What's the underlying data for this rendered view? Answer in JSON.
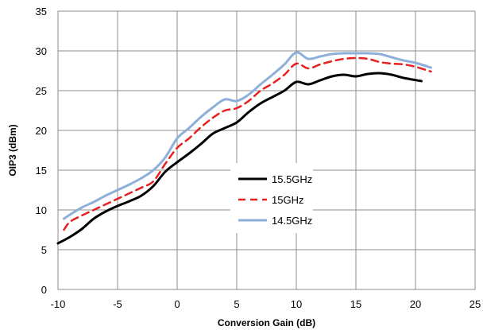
{
  "chart_data": {
    "type": "line",
    "title": "",
    "xlabel": "Conversion Gain (dB)",
    "ylabel": "OIP3 (dBm)",
    "xlim": [
      -10,
      25
    ],
    "ylim": [
      0,
      35
    ],
    "xticks": [
      -10,
      -5,
      0,
      5,
      10,
      15,
      20,
      25
    ],
    "yticks": [
      0,
      5,
      10,
      15,
      20,
      25,
      30,
      35
    ],
    "xtick_labels": [
      "-10",
      "-5",
      "0",
      "5",
      "10",
      "15",
      "20",
      "25"
    ],
    "ytick_labels": [
      "0",
      "5",
      "10",
      "15",
      "20",
      "25",
      "30",
      "35"
    ],
    "grid": true,
    "legend_position": "center",
    "series": [
      {
        "name": "15.5GHz",
        "color": "#000000",
        "dash": "solid",
        "x": [
          -10,
          -9,
          -8,
          -7,
          -6,
          -5,
          -4,
          -3,
          -2,
          -1,
          0,
          1,
          2,
          3,
          4,
          5,
          6,
          7,
          8,
          9,
          10,
          11,
          12,
          13,
          14,
          15,
          16,
          17,
          18,
          19,
          20.5
        ],
        "y": [
          5.8,
          6.6,
          7.6,
          8.9,
          9.8,
          10.5,
          11.1,
          11.8,
          13.0,
          14.8,
          16.0,
          17.1,
          18.3,
          19.6,
          20.3,
          21.0,
          22.3,
          23.4,
          24.2,
          25.0,
          26.1,
          25.8,
          26.3,
          26.8,
          27.0,
          26.8,
          27.1,
          27.2,
          27.0,
          26.6,
          26.2
        ]
      },
      {
        "name": "15GHz",
        "color": "#e62020",
        "dash": "dashed",
        "x": [
          -9.5,
          -9,
          -8,
          -7,
          -6,
          -5,
          -4,
          -3,
          -2,
          -1,
          0,
          1,
          2,
          3,
          4,
          5,
          6,
          7,
          8,
          9,
          10,
          11,
          12,
          13,
          14,
          15,
          16,
          17,
          18,
          19,
          20,
          21.3
        ],
        "y": [
          7.5,
          8.5,
          9.3,
          10.0,
          10.7,
          11.4,
          12.1,
          12.8,
          13.6,
          15.8,
          17.8,
          19.0,
          20.4,
          21.6,
          22.5,
          22.8,
          23.7,
          25.0,
          25.9,
          27.0,
          28.4,
          27.8,
          28.3,
          28.7,
          29.0,
          29.1,
          29.0,
          28.6,
          28.4,
          28.3,
          28.0,
          27.4
        ]
      },
      {
        "name": "14.5GHz",
        "color": "#8eafd9",
        "dash": "solid",
        "x": [
          -9.5,
          -9,
          -8,
          -7,
          -6,
          -5,
          -4,
          -3,
          -2,
          -1,
          0,
          1,
          2,
          3,
          4,
          5,
          6,
          7,
          8,
          9,
          10,
          11,
          12,
          13,
          14,
          15,
          16,
          17,
          18,
          19,
          20,
          21.3
        ],
        "y": [
          8.9,
          9.4,
          10.3,
          11.0,
          11.8,
          12.5,
          13.2,
          14.0,
          15.0,
          16.6,
          19.0,
          20.3,
          21.7,
          22.9,
          23.9,
          23.7,
          24.5,
          25.8,
          27.0,
          28.3,
          29.8,
          29.0,
          29.3,
          29.6,
          29.7,
          29.7,
          29.7,
          29.6,
          29.2,
          28.8,
          28.5,
          27.9
        ]
      }
    ]
  }
}
